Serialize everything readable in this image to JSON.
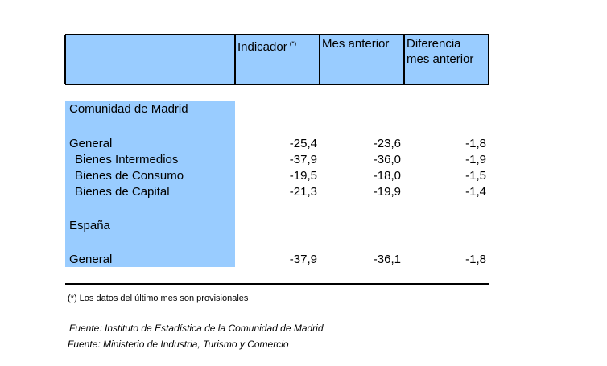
{
  "header": {
    "indicador": "Indicador",
    "indicador_mark": "(*)",
    "mes_anterior": "Mes anterior",
    "diferencia_line1": "Diferencia",
    "diferencia_line2": "mes anterior"
  },
  "madrid": {
    "title": "Comunidad de Madrid",
    "rows": [
      {
        "label": "General",
        "indicador": "-25,4",
        "mes_anterior": "-23,6",
        "diferencia": "-1,8"
      },
      {
        "label": "Bienes Intermedios",
        "indicador": "-37,9",
        "mes_anterior": "-36,0",
        "diferencia": "-1,9"
      },
      {
        "label": "Bienes de Consumo",
        "indicador": "-19,5",
        "mes_anterior": "-18,0",
        "diferencia": "-1,5"
      },
      {
        "label": "Bienes de Capital",
        "indicador": "-21,3",
        "mes_anterior": "-19,9",
        "diferencia": "-1,4"
      }
    ]
  },
  "espana": {
    "title": "España",
    "rows": [
      {
        "label": "General",
        "indicador": "-37,9",
        "mes_anterior": "-36,1",
        "diferencia": "-1,8"
      }
    ]
  },
  "footnote": "(*) Los datos del último mes son provisionales",
  "sources": [
    "Fuente: Instituto de Estadística de la Comunidad de Madrid",
    "Fuente: Ministerio de Industria, Turismo y Comercio"
  ]
}
